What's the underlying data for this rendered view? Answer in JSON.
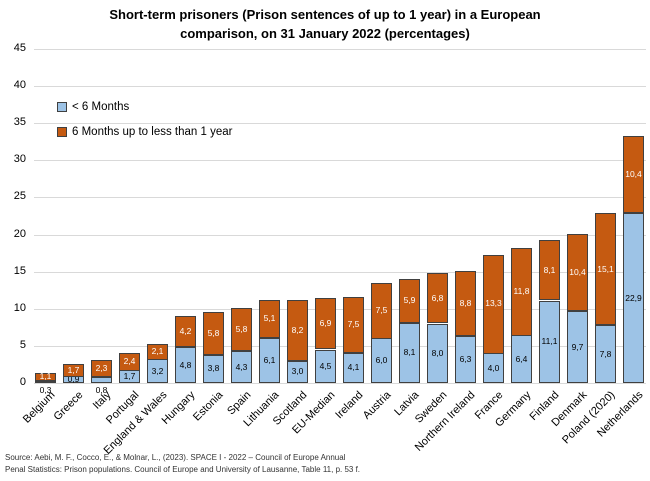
{
  "source": {
    "line1": "Source: Aebi, M. F., Cocco, E., & Molnar, L., (2023). SPACE I - 2022 – Council of Europe Annual",
    "line2": "Penal Statistics: Prison populations. Council of Europe and University of Lausanne, Table 11, p. 53 f."
  },
  "chart_data": {
    "type": "bar",
    "stacked": true,
    "title": "Short-term prisoners (Prison sentences of up to 1 year) in a European comparison, on 31 January 2022 (percentages)",
    "categories": [
      "Belgium",
      "Greece",
      "Italy",
      "Portugal",
      "England & Wales",
      "Hungary",
      "Estonia",
      "Spain",
      "Lithuania",
      "Scotland",
      "EU-Median",
      "Ireland",
      "Austria",
      "Latvia",
      "Sweden",
      "Northern Ireland",
      "France",
      "Germany",
      "Finland",
      "Denmark",
      "Poland (2020)",
      "Netherlands"
    ],
    "series": [
      {
        "name": "< 6 Months",
        "color": "#9DC3E6",
        "label_color": "#000000",
        "values": [
          0.3,
          0.9,
          0.8,
          1.7,
          3.2,
          4.8,
          3.8,
          4.3,
          6.1,
          3.0,
          4.5,
          4.1,
          6.0,
          8.1,
          8.0,
          6.3,
          4.0,
          6.4,
          11.1,
          9.7,
          7.8,
          22.9
        ]
      },
      {
        "name": "6 Months up to less than 1 year",
        "color": "#C55A11",
        "label_color": "#FFFFFF",
        "values": [
          1.1,
          1.7,
          2.3,
          2.4,
          2.1,
          4.2,
          5.8,
          5.8,
          5.1,
          8.2,
          6.9,
          7.5,
          7.5,
          5.9,
          6.8,
          8.8,
          13.3,
          11.8,
          8.1,
          10.4,
          15.1,
          10.4
        ]
      }
    ],
    "ylim": [
      0,
      45
    ],
    "ytick_step": 5,
    "grid": true,
    "legend_position": "top-left-inside",
    "decimal_separator": ",",
    "gridline_color": "#D9D9D9",
    "bar_border_color": "#404040"
  }
}
